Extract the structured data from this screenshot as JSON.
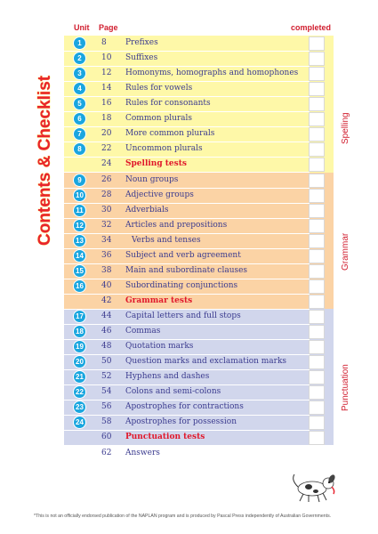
{
  "title": "Contents & Checklist",
  "headers": {
    "unit": "Unit",
    "page": "Page",
    "completed": "completed"
  },
  "sections": {
    "spelling": "Spelling",
    "grammar": "Grammar",
    "punctuation": "Punctuation"
  },
  "colors": {
    "spelling": "#fef8a8",
    "grammar": "#fbd3a5",
    "punctuation": "#d1d6ec",
    "badge": "#1aa6df",
    "test_text": "#e0182b",
    "text": "#3b3b8f"
  },
  "rows": [
    {
      "unit": "1",
      "page": "8",
      "topic": "Prefixes"
    },
    {
      "unit": "2",
      "page": "10",
      "topic": "Suffixes"
    },
    {
      "unit": "3",
      "page": "12",
      "topic": "Homonyms, homographs and homophones"
    },
    {
      "unit": "4",
      "page": "14",
      "topic": "Rules for vowels"
    },
    {
      "unit": "5",
      "page": "16",
      "topic": "Rules for consonants"
    },
    {
      "unit": "6",
      "page": "18",
      "topic": "Common plurals"
    },
    {
      "unit": "7",
      "page": "20",
      "topic": "More common plurals"
    },
    {
      "unit": "8",
      "page": "22",
      "topic": "Uncommon plurals"
    },
    {
      "unit": "",
      "page": "24",
      "topic": "Spelling tests"
    },
    {
      "unit": "9",
      "page": "26",
      "topic": "Noun groups"
    },
    {
      "unit": "10",
      "page": "28",
      "topic": "Adjective groups"
    },
    {
      "unit": "11",
      "page": "30",
      "topic": "Adverbials"
    },
    {
      "unit": "12",
      "page": "32",
      "topic": "Articles and prepositions"
    },
    {
      "unit": "13",
      "page": "34",
      "topic": "Verbs and tenses"
    },
    {
      "unit": "14",
      "page": "36",
      "topic": "Subject and verb agreement"
    },
    {
      "unit": "15",
      "page": "38",
      "topic": "Main and subordinate clauses"
    },
    {
      "unit": "16",
      "page": "40",
      "topic": "Subordinating conjunctions"
    },
    {
      "unit": "",
      "page": "42",
      "topic": "Grammar tests"
    },
    {
      "unit": "17",
      "page": "44",
      "topic": "Capital letters and full stops"
    },
    {
      "unit": "18",
      "page": "46",
      "topic": "Commas"
    },
    {
      "unit": "19",
      "page": "48",
      "topic": "Quotation marks"
    },
    {
      "unit": "20",
      "page": "50",
      "topic": "Question marks and exclamation marks"
    },
    {
      "unit": "21",
      "page": "52",
      "topic": "Hyphens and dashes"
    },
    {
      "unit": "22",
      "page": "54",
      "topic": "Colons and semi-colons"
    },
    {
      "unit": "23",
      "page": "56",
      "topic": "Apostrophes for contractions"
    },
    {
      "unit": "24",
      "page": "58",
      "topic": "Apostrophes for possession"
    },
    {
      "unit": "",
      "page": "60",
      "topic": "Punctuation tests"
    },
    {
      "unit": "",
      "page": "62",
      "topic": "Answers"
    }
  ],
  "footnote": "*This is not an officially endorsed publication of the NAPLAN program and is produced by Pascal Press independently of Australian Governments."
}
